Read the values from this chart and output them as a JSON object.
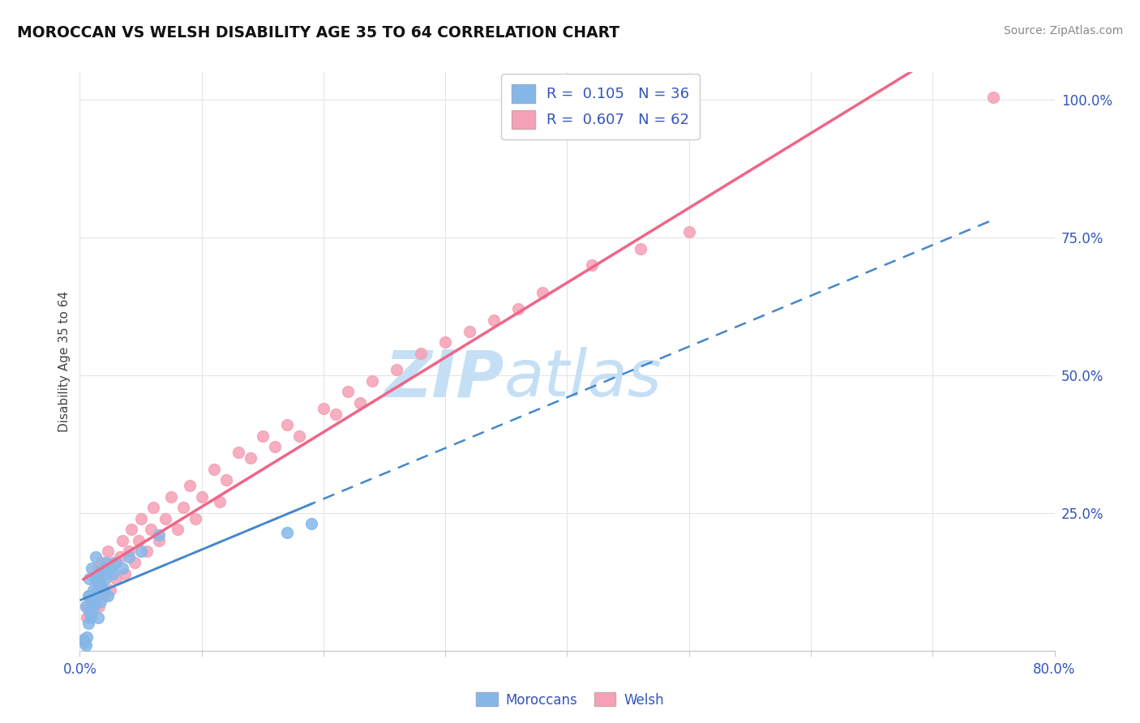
{
  "title": "MOROCCAN VS WELSH DISABILITY AGE 35 TO 64 CORRELATION CHART",
  "source": "Source: ZipAtlas.com",
  "ylabel": "Disability Age 35 to 64",
  "xlim": [
    0.0,
    0.8
  ],
  "ylim": [
    0.0,
    1.05
  ],
  "xtick_positions": [
    0.0,
    0.1,
    0.2,
    0.3,
    0.4,
    0.5,
    0.6,
    0.7,
    0.8
  ],
  "xticklabels_show": [
    "0.0%",
    "",
    "",
    "",
    "",
    "",
    "",
    "",
    "80.0%"
  ],
  "ytick_positions": [
    0.0,
    0.25,
    0.5,
    0.75,
    1.0
  ],
  "ytick_labels_right": [
    "",
    "25.0%",
    "50.0%",
    "75.0%",
    "100.0%"
  ],
  "moroccan_R": 0.105,
  "moroccan_N": 36,
  "welsh_R": 0.607,
  "welsh_N": 62,
  "moroccan_color": "#85b8e8",
  "welsh_color": "#f5a0b5",
  "moroccan_line_color": "#4488cc",
  "welsh_line_color": "#ee6688",
  "legend_text_color": "#3355bb",
  "bottom_legend_color": "#3355bb",
  "watermark_color": "#c5dff5",
  "grid_color": "#e5e5e5",
  "moroccan_x": [
    0.003,
    0.004,
    0.005,
    0.005,
    0.006,
    0.007,
    0.007,
    0.008,
    0.008,
    0.009,
    0.01,
    0.01,
    0.011,
    0.012,
    0.013,
    0.013,
    0.014,
    0.015,
    0.015,
    0.016,
    0.017,
    0.018,
    0.019,
    0.02,
    0.021,
    0.022,
    0.023,
    0.025,
    0.027,
    0.03,
    0.035,
    0.04,
    0.05,
    0.065,
    0.17,
    0.19
  ],
  "moroccan_y": [
    0.02,
    0.015,
    0.01,
    0.08,
    0.025,
    0.05,
    0.1,
    0.07,
    0.13,
    0.06,
    0.09,
    0.15,
    0.11,
    0.08,
    0.13,
    0.17,
    0.1,
    0.12,
    0.06,
    0.14,
    0.09,
    0.12,
    0.15,
    0.11,
    0.13,
    0.16,
    0.1,
    0.15,
    0.14,
    0.16,
    0.15,
    0.17,
    0.18,
    0.21,
    0.215,
    0.23
  ],
  "welsh_x": [
    0.003,
    0.005,
    0.006,
    0.008,
    0.01,
    0.012,
    0.013,
    0.014,
    0.015,
    0.016,
    0.017,
    0.018,
    0.02,
    0.022,
    0.023,
    0.025,
    0.027,
    0.03,
    0.033,
    0.035,
    0.037,
    0.04,
    0.042,
    0.045,
    0.048,
    0.05,
    0.055,
    0.058,
    0.06,
    0.065,
    0.07,
    0.075,
    0.08,
    0.085,
    0.09,
    0.095,
    0.1,
    0.11,
    0.115,
    0.12,
    0.13,
    0.14,
    0.15,
    0.16,
    0.17,
    0.18,
    0.2,
    0.21,
    0.22,
    0.23,
    0.24,
    0.26,
    0.28,
    0.3,
    0.32,
    0.34,
    0.36,
    0.38,
    0.42,
    0.46,
    0.5,
    0.75
  ],
  "welsh_y": [
    0.02,
    0.08,
    0.06,
    0.1,
    0.07,
    0.09,
    0.13,
    0.11,
    0.15,
    0.08,
    0.12,
    0.16,
    0.1,
    0.14,
    0.18,
    0.11,
    0.16,
    0.13,
    0.17,
    0.2,
    0.14,
    0.18,
    0.22,
    0.16,
    0.2,
    0.24,
    0.18,
    0.22,
    0.26,
    0.2,
    0.24,
    0.28,
    0.22,
    0.26,
    0.3,
    0.24,
    0.28,
    0.33,
    0.27,
    0.31,
    0.36,
    0.35,
    0.39,
    0.37,
    0.41,
    0.39,
    0.44,
    0.43,
    0.47,
    0.45,
    0.49,
    0.51,
    0.54,
    0.56,
    0.58,
    0.6,
    0.62,
    0.65,
    0.7,
    0.73,
    0.76,
    1.005
  ]
}
